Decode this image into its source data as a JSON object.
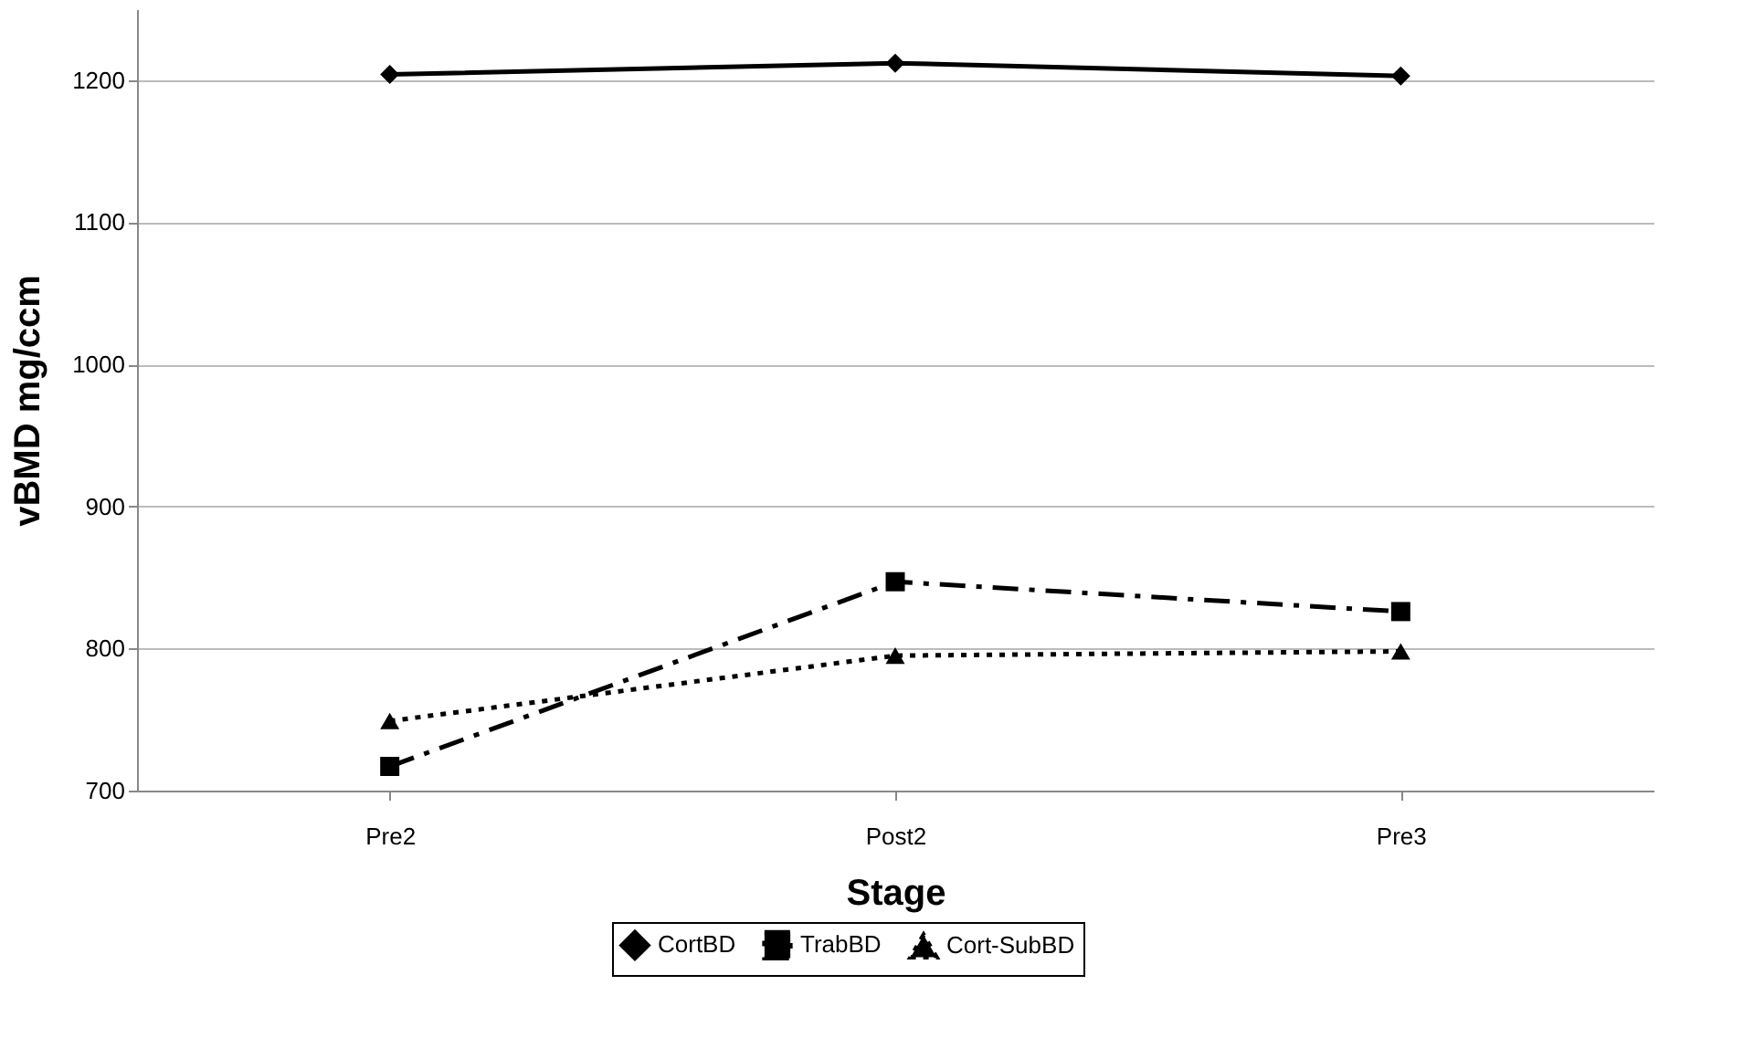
{
  "chart_data": {
    "type": "line",
    "xlabel": "Stage",
    "ylabel": "vBMD mg/ccm",
    "categories": [
      "Pre2",
      "Post2",
      "Pre3"
    ],
    "series": [
      {
        "name": "CortBD",
        "color": "#000000",
        "marker": "diamond",
        "line_style": "solid",
        "values": [
          1204,
          1212,
          1203
        ]
      },
      {
        "name": "TrabBD",
        "color": "#000000",
        "marker": "square",
        "line_style": "dashdot",
        "values": [
          717,
          847,
          826
        ]
      },
      {
        "name": "Cort-SubBD",
        "color": "#000000",
        "marker": "triangle",
        "line_style": "dotted",
        "values": [
          749,
          795,
          798
        ]
      }
    ],
    "ylim": [
      700,
      1250
    ],
    "yticks": [
      700,
      800,
      900,
      1000,
      1100,
      1200
    ],
    "grid": "y",
    "legend": "bottom"
  }
}
